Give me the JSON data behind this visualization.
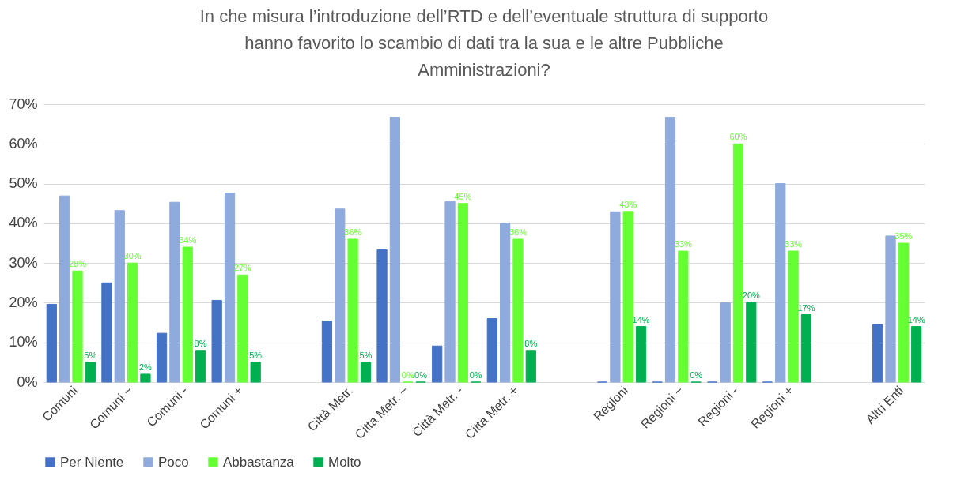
{
  "chart_data": {
    "type": "bar",
    "title": "In che misura l’introduzione dell’RTD e dell’eventuale struttura di supporto hanno favorito lo scambio di dati tra la sua e le altre Pubbliche Amministrazioni?",
    "categories": [
      "Comuni",
      "Comuni ~",
      "Comuni -",
      "Comuni +",
      null,
      "Città Metr.",
      "Città Metr. ~",
      "Città Metr. -",
      "Città Metr. +",
      null,
      "Regioni",
      "Regioni ~",
      "Regioni -",
      "Regioni +",
      null,
      "Altri Enti"
    ],
    "series": [
      {
        "name": "Per Niente",
        "color": "#4472c4",
        "values": [
          19.6,
          25,
          12.3,
          20.6,
          null,
          15.4,
          33.3,
          9.1,
          16,
          null,
          0,
          0,
          0,
          0,
          null,
          14.5
        ]
      },
      {
        "name": "Poco",
        "color": "#8faadc",
        "values": [
          46.9,
          43.2,
          45.3,
          47.6,
          null,
          43.6,
          66.7,
          45.5,
          40,
          null,
          42.9,
          66.7,
          20,
          50,
          null,
          36.8
        ]
      },
      {
        "name": "Abbastanza",
        "color": "#66ff33",
        "values": [
          28,
          30,
          34,
          27,
          null,
          36,
          0,
          45,
          36,
          null,
          43,
          33,
          60,
          33,
          null,
          35
        ],
        "value_labels": [
          "28%",
          "30%",
          "34%",
          "27%",
          null,
          "36%",
          "0%",
          "45%",
          "36%",
          null,
          "43%",
          "33%",
          "60%",
          "33%",
          null,
          "35%"
        ]
      },
      {
        "name": "Molto",
        "color": "#00b050",
        "values": [
          5,
          2,
          8,
          5,
          null,
          5,
          0,
          0,
          8,
          null,
          14,
          0,
          20,
          17,
          null,
          14
        ],
        "value_labels": [
          "5%",
          "2%",
          "8%",
          "5%",
          null,
          "5%",
          "0%",
          "0%",
          "8%",
          null,
          "14%",
          "0%",
          "20%",
          "17%",
          null,
          "14%"
        ]
      }
    ],
    "ylim": [
      0,
      70
    ],
    "yticks": [
      {
        "value": 0,
        "label": "0%"
      },
      {
        "value": 10,
        "label": "10%"
      },
      {
        "value": 20,
        "label": "20%"
      },
      {
        "value": 30,
        "label": "30%"
      },
      {
        "value": 40,
        "label": "40%"
      },
      {
        "value": 50,
        "label": "50%"
      },
      {
        "value": 60,
        "label": "60%"
      },
      {
        "value": 70,
        "label": "70%"
      }
    ],
    "grid": "y",
    "legend": "bottom"
  }
}
